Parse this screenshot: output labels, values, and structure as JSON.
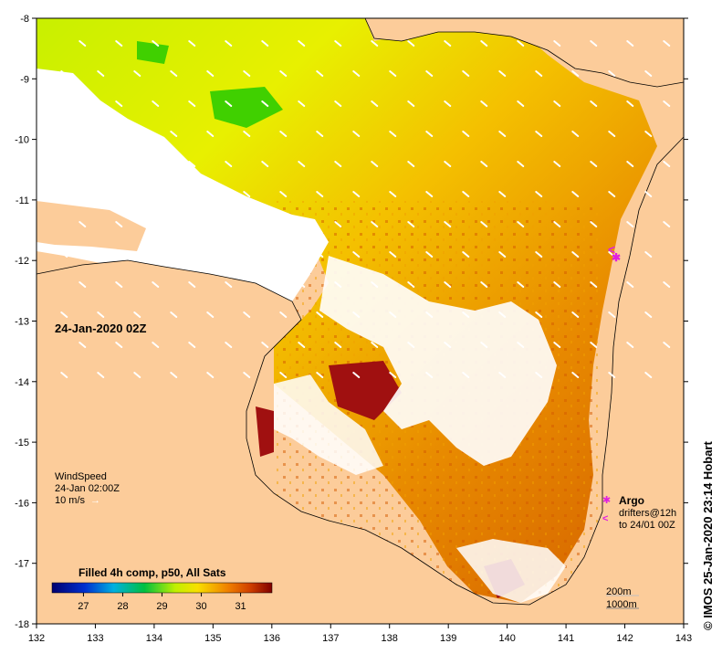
{
  "map": {
    "lon_ticks": [
      "132",
      "133",
      "134",
      "135",
      "136",
      "137",
      "138",
      "139",
      "140",
      "141",
      "142",
      "143"
    ],
    "lat_ticks": [
      "-8",
      "-9",
      "-10",
      "-11",
      "-12",
      "-13",
      "-14",
      "-15",
      "-16",
      "-17",
      "-18"
    ],
    "land_color": "#fccc9a",
    "nodata_color": "#ffffff"
  },
  "timestamp": "24-Jan-2020 02Z",
  "wind": {
    "title": "WindSpeed",
    "time": "24-Jan 02:00Z",
    "scale": "10 m/s"
  },
  "argo": {
    "title": "Argo",
    "drifters_line1": "drifters@12h",
    "drifters_line2": "to 24/01 00Z",
    "argo_symbol": "✱",
    "drifter_symbol": "<",
    "color": "#e020e0"
  },
  "depth_legend": {
    "line1": "200m",
    "line2": "1000m"
  },
  "colorbar": {
    "title": "Filled 4h comp, p50, All Sats",
    "ticks": [
      "27",
      "28",
      "29",
      "30",
      "31"
    ],
    "range": [
      26.2,
      31.8
    ]
  },
  "credit": "© IMOS 25-Jan-2020 23:14 Hobart"
}
